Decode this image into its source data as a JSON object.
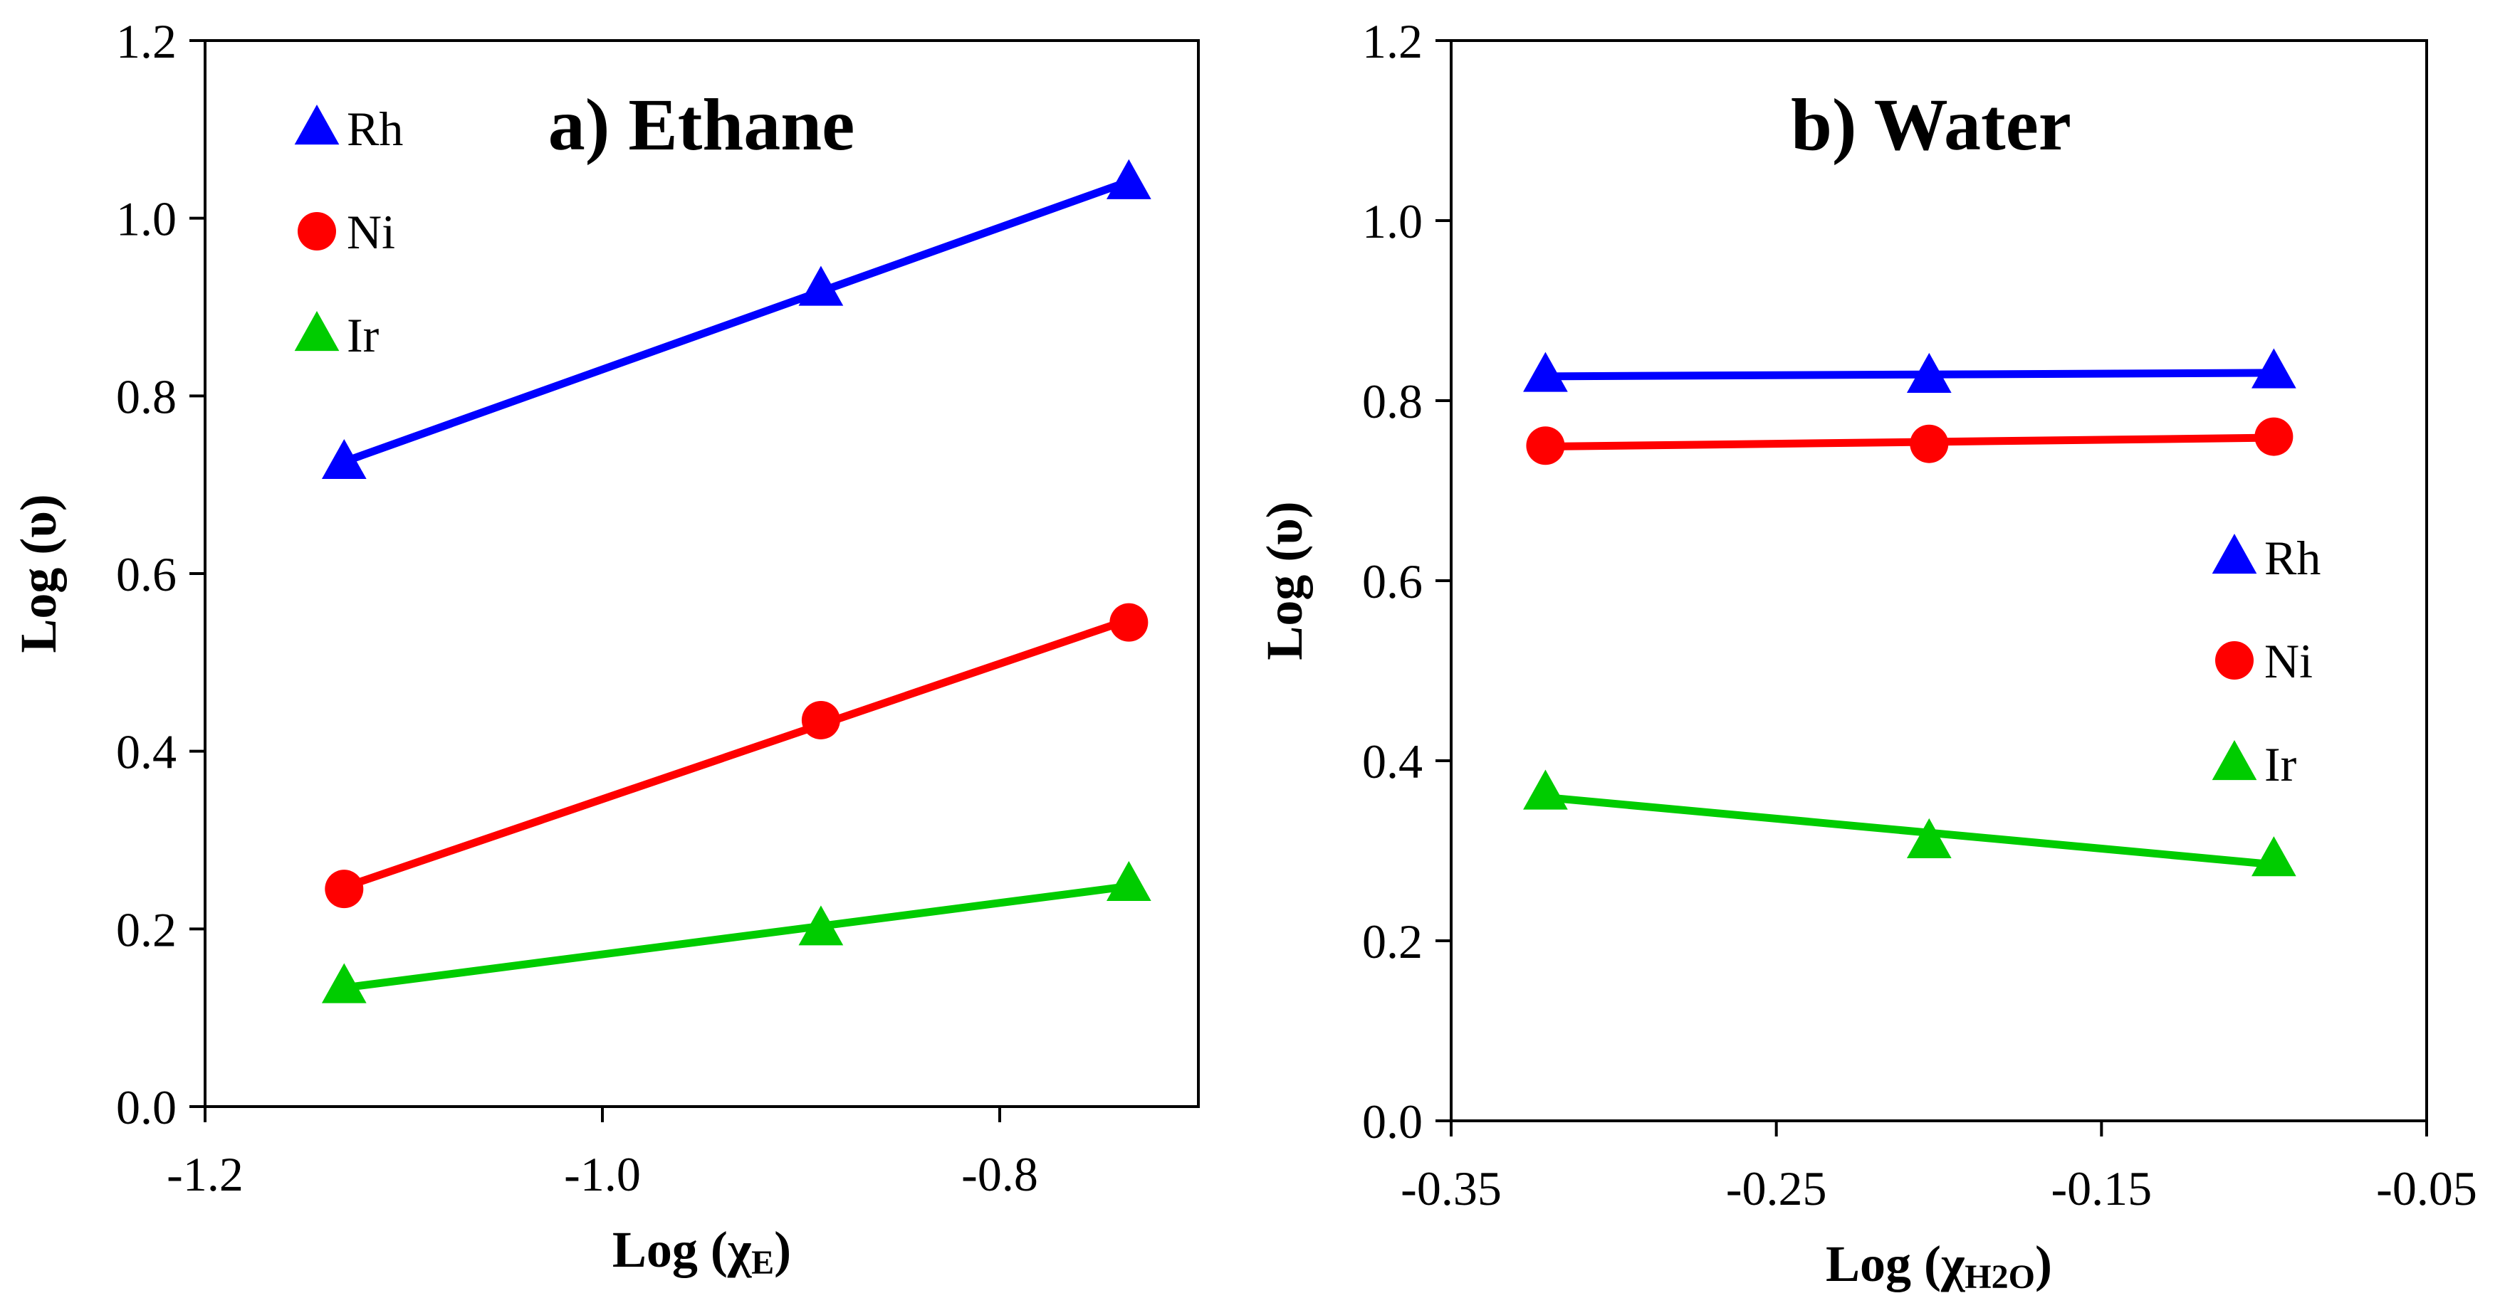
{
  "chart_data": [
    {
      "type": "line",
      "title": "a) Ethane",
      "xlabel": "Log  (χE)",
      "xlabel_parts": {
        "prefix": "Log  (",
        "greek": "χ",
        "sub": "E",
        "suffix": ")"
      },
      "ylabel": "Log (υ)",
      "xlim": [
        -1.2,
        -0.7
      ],
      "ylim": [
        0.0,
        1.2
      ],
      "xticks": [
        -1.2,
        -1.0,
        -0.8
      ],
      "xtick_labels": [
        "-1.2",
        "-1.0",
        "-0.8"
      ],
      "yticks": [
        0.0,
        0.2,
        0.4,
        0.6,
        0.8,
        1.0,
        1.2
      ],
      "ytick_labels": [
        "0.0",
        "0.2",
        "0.4",
        "0.6",
        "0.8",
        "1.0",
        "1.2"
      ],
      "legend": "top-left",
      "series": [
        {
          "name": "Rh",
          "marker": "triangle",
          "color": "#0000ff",
          "x": [
            -1.13,
            -0.89,
            -0.735
          ],
          "y": [
            0.725,
            0.92,
            1.04
          ]
        },
        {
          "name": "Ni",
          "marker": "circle",
          "color": "#ff0000",
          "x": [
            -1.13,
            -0.89,
            -0.735
          ],
          "y": [
            0.245,
            0.435,
            0.545
          ]
        },
        {
          "name": "Ir",
          "marker": "triangle",
          "color": "#00cc00",
          "x": [
            -1.13,
            -0.89,
            -0.735
          ],
          "y": [
            0.135,
            0.2,
            0.25
          ]
        }
      ]
    },
    {
      "type": "line",
      "title": "b) Water",
      "xlabel": "Log  (χH2O)",
      "xlabel_parts": {
        "prefix": "Log  (",
        "greek": "χ",
        "sub": "H2O",
        "suffix": ")"
      },
      "ylabel": "Log (υ)",
      "xlim": [
        -0.35,
        -0.05
      ],
      "ylim": [
        0.0,
        1.2
      ],
      "xticks": [
        -0.35,
        -0.25,
        -0.15,
        -0.05
      ],
      "xtick_labels": [
        "-0.35",
        "-0.25",
        "-0.15",
        "-0.05"
      ],
      "yticks": [
        0.0,
        0.2,
        0.4,
        0.6,
        0.8,
        1.0,
        1.2
      ],
      "ytick_labels": [
        "0.0",
        "0.2",
        "0.4",
        "0.6",
        "0.8",
        "1.0",
        "1.2"
      ],
      "legend": "middle-right",
      "series": [
        {
          "name": "Rh",
          "marker": "triangle",
          "color": "#0000ff",
          "x": [
            -0.321,
            -0.203,
            -0.097
          ],
          "y": [
            0.828,
            0.827,
            0.832
          ]
        },
        {
          "name": "Ni",
          "marker": "circle",
          "color": "#ff0000",
          "x": [
            -0.321,
            -0.203,
            -0.097
          ],
          "y": [
            0.75,
            0.752,
            0.76
          ]
        },
        {
          "name": "Ir",
          "marker": "triangle",
          "color": "#00cc00",
          "x": [
            -0.321,
            -0.203,
            -0.097
          ],
          "y": [
            0.364,
            0.31,
            0.29
          ]
        }
      ]
    }
  ]
}
